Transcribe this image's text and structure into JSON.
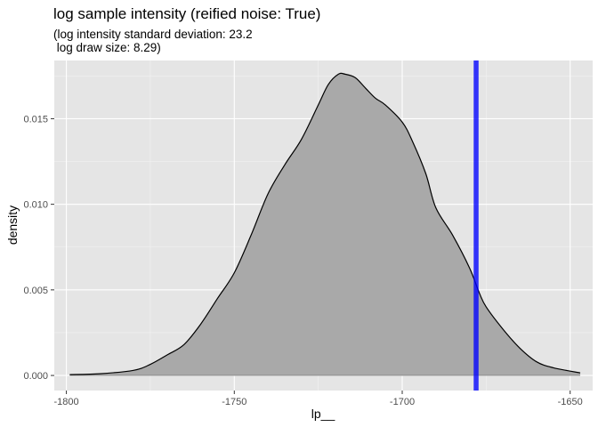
{
  "chart_data": {
    "type": "area",
    "title": "log sample intensity (reified noise: True)",
    "subtitle_lines": [
      "(log intensity standard deviation: 23.2",
      " log draw size: 8.29)"
    ],
    "xlabel": "lp__",
    "ylabel": "density",
    "xlim": [
      -1803.6,
      -1643.3
    ],
    "ylim": [
      -0.00088,
      0.0184
    ],
    "x_ticks": [
      -1800,
      -1750,
      -1700,
      -1650
    ],
    "x_tick_labels": [
      "-1800",
      "-1750",
      "-1700",
      "-1650"
    ],
    "y_ticks": [
      0.0,
      0.005,
      0.01,
      0.015
    ],
    "y_tick_labels": [
      "0.000",
      "0.005",
      "0.010",
      "0.015"
    ],
    "grid": true,
    "vline": {
      "x": -1678,
      "color": "#0000ff"
    },
    "fill_color": "#a9a9a9",
    "line_color": "#000000",
    "panel_background": "#e5e5e5",
    "density": {
      "x": [
        -1799,
        -1790,
        -1780,
        -1775,
        -1770,
        -1765,
        -1760,
        -1755,
        -1750,
        -1745,
        -1740,
        -1735,
        -1730,
        -1725,
        -1722,
        -1719,
        -1717,
        -1714,
        -1711,
        -1708,
        -1705,
        -1700,
        -1697,
        -1693,
        -1690,
        -1685,
        -1680,
        -1677,
        -1675,
        -1670,
        -1665,
        -1660,
        -1655,
        -1647
      ],
      "y": [
        5e-05,
        0.0001,
        0.0003,
        0.00065,
        0.0012,
        0.0018,
        0.003,
        0.0045,
        0.006,
        0.0082,
        0.0106,
        0.0123,
        0.0138,
        0.0158,
        0.017,
        0.0176,
        0.0176,
        0.0174,
        0.0168,
        0.0162,
        0.0158,
        0.0148,
        0.0137,
        0.0118,
        0.0098,
        0.0082,
        0.0063,
        0.0048,
        0.004,
        0.0027,
        0.0016,
        0.0008,
        0.00045,
        0.00015
      ]
    }
  }
}
